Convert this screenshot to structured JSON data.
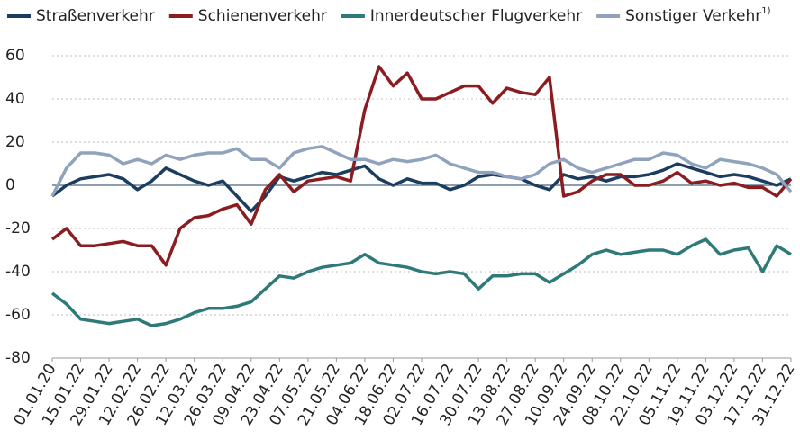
{
  "chart_data": {
    "type": "line",
    "categories": [
      "01.01.20",
      null,
      "15.01.22",
      null,
      "29.01.22",
      null,
      "12.02.22",
      null,
      "26.02.22",
      null,
      "12.03.22",
      null,
      "26.03.22",
      null,
      "09.04.22",
      null,
      "23.04.22",
      null,
      "07.05.22",
      null,
      "21.05.22",
      null,
      "04.06.22",
      null,
      "18.06.22",
      null,
      "02.07.22",
      null,
      "16.07.22",
      null,
      "30.07.22",
      null,
      "13.08.22",
      null,
      "27.08.22",
      null,
      "10.09.22",
      null,
      "24.09.22",
      null,
      "08.10.22",
      null,
      "22.10.22",
      null,
      "05.11.22",
      null,
      "19.11.22",
      null,
      "03.12.22",
      null,
      "17.12.22",
      null,
      "31.12.22"
    ],
    "series": [
      {
        "name": "Straßenverkehr",
        "color": "#1b3d5f",
        "values": [
          -5,
          0,
          3,
          4,
          5,
          3,
          -2,
          2,
          8,
          5,
          2,
          0,
          2,
          -5,
          -12,
          -5,
          4,
          2,
          4,
          6,
          5,
          7,
          9,
          3,
          0,
          3,
          1,
          1,
          -2,
          0,
          4,
          5,
          4,
          3,
          0,
          -2,
          5,
          3,
          4,
          2,
          4,
          4,
          5,
          7,
          10,
          8,
          6,
          4,
          5,
          4,
          2,
          0,
          3
        ]
      },
      {
        "name": "Schienenverkehr",
        "color": "#8b1c1f",
        "values": [
          -25,
          -20,
          -28,
          -28,
          -27,
          -26,
          -28,
          -28,
          -37,
          -20,
          -15,
          -14,
          -11,
          -9,
          -18,
          -2,
          5,
          -3,
          2,
          3,
          4,
          2,
          35,
          55,
          46,
          52,
          40,
          40,
          43,
          46,
          46,
          38,
          45,
          43,
          42,
          50,
          -5,
          -3,
          2,
          5,
          5,
          0,
          0,
          2,
          6,
          1,
          2,
          0,
          1,
          -1,
          -1,
          -5,
          3
        ]
      },
      {
        "name": "Innerdeutscher Flugverkehr",
        "color": "#2e7a78",
        "values": [
          -50,
          -55,
          -62,
          -63,
          -64,
          -63,
          -62,
          -65,
          -64,
          -62,
          -59,
          -57,
          -57,
          -56,
          -54,
          -48,
          -42,
          -43,
          -40,
          -38,
          -37,
          -36,
          -32,
          -36,
          -37,
          -38,
          -40,
          -41,
          -40,
          -41,
          -48,
          -42,
          -42,
          -41,
          -41,
          -45,
          -41,
          -37,
          -32,
          -30,
          -32,
          -31,
          -30,
          -30,
          -32,
          -28,
          -25,
          -32,
          -30,
          -29,
          -40,
          -28,
          -32
        ]
      },
      {
        "name": "Sonstiger Verkehr",
        "name_superscript": "1)",
        "color": "#8fa3bd",
        "values": [
          -5,
          8,
          15,
          15,
          14,
          10,
          12,
          10,
          14,
          12,
          14,
          15,
          15,
          17,
          12,
          12,
          8,
          15,
          17,
          18,
          15,
          12,
          12,
          10,
          12,
          11,
          12,
          14,
          10,
          8,
          6,
          6,
          4,
          3,
          5,
          10,
          12,
          8,
          6,
          8,
          10,
          12,
          12,
          15,
          14,
          10,
          8,
          12,
          11,
          10,
          8,
          5,
          -3
        ]
      }
    ],
    "ylim": [
      -80,
      60
    ],
    "yticks": [
      60,
      40,
      20,
      0,
      -20,
      -40,
      -60,
      -80
    ],
    "grid": true
  }
}
